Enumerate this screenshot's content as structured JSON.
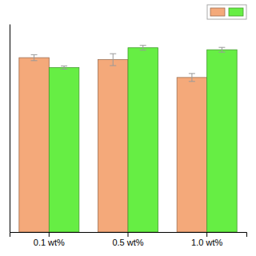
{
  "chart_data": {
    "type": "bar",
    "categories": [
      "0.1 wt%",
      "0.5 wt%",
      "1.0 wt%"
    ],
    "series": [
      {
        "color": "#F4A97A",
        "values": [
          0.88,
          0.87,
          0.78
        ],
        "errors": [
          0.015,
          0.03,
          0.02
        ]
      },
      {
        "color": "#66EE44",
        "values": [
          0.83,
          0.93,
          0.92
        ],
        "errors": [
          0.008,
          0.012,
          0.012
        ]
      }
    ],
    "ylim": [
      0.0,
      1.05
    ],
    "tick_labels": "x",
    "grid": false,
    "legend": "upper right"
  }
}
